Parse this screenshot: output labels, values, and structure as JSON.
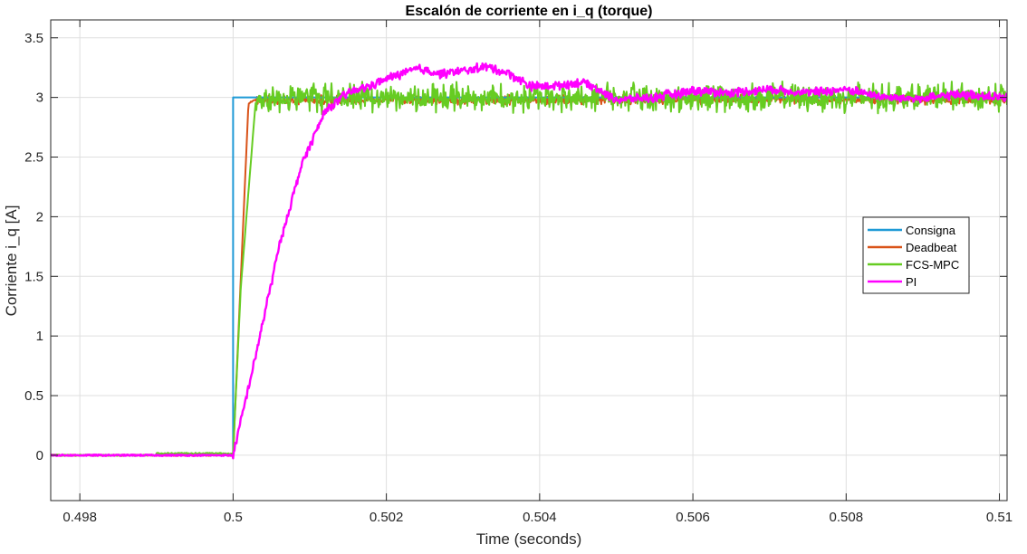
{
  "chart_data": {
    "type": "line",
    "title": "Escalón de corriente en i_q (torque)",
    "xlabel": "Time (seconds)",
    "ylabel": "Corriente i_q [A]",
    "xlim": [
      0.49762,
      0.5101
    ],
    "ylim": [
      -0.38,
      3.65
    ],
    "xticks": [
      0.498,
      0.5,
      0.502,
      0.504,
      0.506,
      0.508,
      0.51
    ],
    "xtick_labels": [
      "0.498",
      "0.5",
      "0.502",
      "0.504",
      "0.506",
      "0.508",
      "0.51"
    ],
    "yticks": [
      0,
      0.5,
      1,
      1.5,
      2,
      2.5,
      3,
      3.5
    ],
    "ytick_labels": [
      "0",
      "0.5",
      "1",
      "1.5",
      "2",
      "2.5",
      "3",
      "3.5"
    ],
    "grid": true,
    "legend_position": "right",
    "series": [
      {
        "name": "Consigna",
        "color": "#1f9ad6",
        "x": [
          0.49762,
          0.5,
          0.5,
          0.5101
        ],
        "y": [
          0,
          0,
          3,
          3
        ]
      },
      {
        "name": "Deadbeat",
        "color": "#d95319",
        "x": [
          0.49762,
          0.5,
          0.5002,
          0.5003,
          0.5101
        ],
        "y": [
          0,
          0,
          2.95,
          2.98,
          2.98
        ],
        "noise": 0.03
      },
      {
        "name": "FCS-MPC",
        "color": "#66cc22",
        "x": [
          0.49762,
          0.499,
          0.499,
          0.5,
          0.5001,
          0.50028,
          0.5003,
          0.5101
        ],
        "y": [
          0,
          0,
          0.015,
          0.015,
          1.4,
          2.85,
          3.0,
          3.0
        ],
        "noise": 0.09
      },
      {
        "name": "PI",
        "color": "#ff00ff",
        "x": [
          0.49762,
          0.5,
          0.5003,
          0.5006,
          0.5009,
          0.5012,
          0.5015,
          0.5018,
          0.5021,
          0.5024,
          0.5027,
          0.503,
          0.5033,
          0.5036,
          0.5039,
          0.5042,
          0.5046,
          0.505,
          0.5055,
          0.506,
          0.5065,
          0.507,
          0.5075,
          0.508,
          0.5085,
          0.509,
          0.5095,
          0.51
        ],
        "y": [
          0,
          0,
          0.85,
          1.75,
          2.45,
          2.88,
          3.04,
          3.1,
          3.18,
          3.24,
          3.2,
          3.22,
          3.26,
          3.2,
          3.09,
          3.1,
          3.13,
          2.98,
          3.0,
          3.06,
          3.04,
          3.07,
          3.04,
          3.07,
          3.0,
          2.99,
          3.03,
          3.0
        ],
        "noise": 0.03
      }
    ]
  }
}
